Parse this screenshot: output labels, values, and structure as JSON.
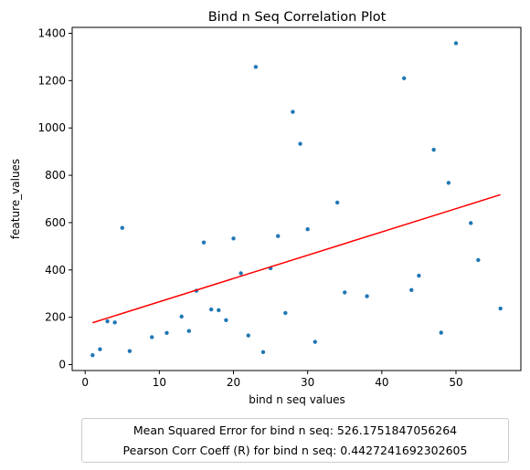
{
  "chart_data": {
    "type": "scatter",
    "title": "Bind n Seq Correlation Plot",
    "xlabel": "bind n seq values",
    "ylabel": "feature_values",
    "xlim": [
      -1.75,
      58.75
    ],
    "ylim": [
      -25,
      1425
    ],
    "xticks": [
      0,
      10,
      20,
      30,
      40,
      50
    ],
    "yticks": [
      0,
      200,
      400,
      600,
      800,
      1000,
      1200,
      1400
    ],
    "grid": false,
    "point_color": "#1f77b4",
    "fit_color": "#ff0000",
    "points": [
      {
        "x": 1,
        "y": 40
      },
      {
        "x": 2,
        "y": 65
      },
      {
        "x": 3,
        "y": 183
      },
      {
        "x": 4,
        "y": 178
      },
      {
        "x": 5,
        "y": 578
      },
      {
        "x": 6,
        "y": 57
      },
      {
        "x": 9,
        "y": 116
      },
      {
        "x": 11,
        "y": 134
      },
      {
        "x": 13,
        "y": 203
      },
      {
        "x": 14,
        "y": 142
      },
      {
        "x": 15,
        "y": 312
      },
      {
        "x": 16,
        "y": 516
      },
      {
        "x": 17,
        "y": 233
      },
      {
        "x": 18,
        "y": 230
      },
      {
        "x": 19,
        "y": 188
      },
      {
        "x": 20,
        "y": 533
      },
      {
        "x": 21,
        "y": 386
      },
      {
        "x": 22,
        "y": 123
      },
      {
        "x": 23,
        "y": 1258
      },
      {
        "x": 24,
        "y": 53
      },
      {
        "x": 25,
        "y": 407
      },
      {
        "x": 26,
        "y": 543
      },
      {
        "x": 27,
        "y": 218
      },
      {
        "x": 28,
        "y": 1068
      },
      {
        "x": 29,
        "y": 933
      },
      {
        "x": 30,
        "y": 572
      },
      {
        "x": 31,
        "y": 96
      },
      {
        "x": 34,
        "y": 685
      },
      {
        "x": 35,
        "y": 305
      },
      {
        "x": 38,
        "y": 289
      },
      {
        "x": 43,
        "y": 1210
      },
      {
        "x": 44,
        "y": 315
      },
      {
        "x": 45,
        "y": 376
      },
      {
        "x": 47,
        "y": 908
      },
      {
        "x": 48,
        "y": 135
      },
      {
        "x": 49,
        "y": 768
      },
      {
        "x": 50,
        "y": 1358
      },
      {
        "x": 52,
        "y": 598
      },
      {
        "x": 53,
        "y": 442
      },
      {
        "x": 56,
        "y": 237
      }
    ],
    "fit_line": {
      "x": [
        1,
        56
      ],
      "y": [
        177,
        718
      ]
    },
    "legend": {
      "placement": "below plot",
      "entries": [
        "Mean Squared Error for bind n seq: 526.1751847056264",
        "Pearson Corr Coeff (R) for bind n seq: 0.4427241692302605"
      ]
    }
  }
}
